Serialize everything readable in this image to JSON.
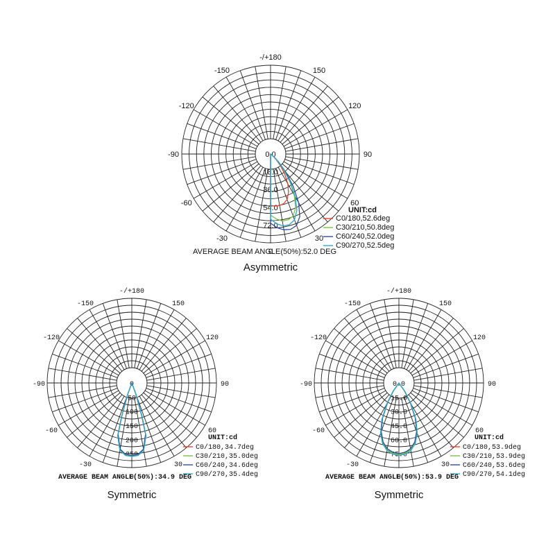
{
  "chart_data": [
    {
      "type": "polar",
      "title": "Asymmetric",
      "unit_label": "UNIT:cd",
      "footer": "AVERAGE BEAM ANGLE(50%):52.0 DEG",
      "angle_labels": [
        "-/+180",
        "150",
        "120",
        "90",
        "60",
        "30",
        "0",
        "-30",
        "-60",
        "-90",
        "-120",
        "-150"
      ],
      "radial_labels": [
        "0.0",
        "18.0",
        "36.0",
        "54.0",
        "72.0"
      ],
      "rmax": 90,
      "series": [
        {
          "name": "C0/180,52.6deg",
          "color": "#e8432c",
          "points": [
            [
              0,
              52
            ],
            [
              5,
              53
            ],
            [
              10,
              53
            ],
            [
              15,
              52
            ],
            [
              20,
              49
            ],
            [
              25,
              43
            ],
            [
              30,
              35
            ],
            [
              35,
              25
            ],
            [
              40,
              16
            ],
            [
              45,
              8
            ],
            [
              50,
              3
            ],
            [
              55,
              1
            ],
            [
              60,
              0
            ]
          ]
        },
        {
          "name": "C30/210,50.8deg",
          "color": "#7cc242",
          "points": [
            [
              0,
              62
            ],
            [
              5,
              66
            ],
            [
              10,
              69
            ],
            [
              15,
              69
            ],
            [
              20,
              67
            ],
            [
              25,
              60
            ],
            [
              30,
              48
            ],
            [
              35,
              34
            ],
            [
              40,
              20
            ],
            [
              45,
              10
            ],
            [
              50,
              4
            ],
            [
              55,
              1
            ],
            [
              60,
              0
            ]
          ]
        },
        {
          "name": "C60/240,52.0deg",
          "color": "#2d4f9e",
          "points": [
            [
              0,
              70
            ],
            [
              5,
              75
            ],
            [
              10,
              78
            ],
            [
              15,
              79
            ],
            [
              20,
              77
            ],
            [
              25,
              70
            ],
            [
              30,
              57
            ],
            [
              35,
              40
            ],
            [
              40,
              24
            ],
            [
              45,
              12
            ],
            [
              50,
              5
            ],
            [
              55,
              1
            ],
            [
              60,
              0
            ]
          ]
        },
        {
          "name": "C90/270,52.5deg",
          "color": "#2aa9c9",
          "points": [
            [
              0,
              66
            ],
            [
              5,
              71
            ],
            [
              10,
              74
            ],
            [
              15,
              74
            ],
            [
              20,
              71
            ],
            [
              25,
              63
            ],
            [
              30,
              50
            ],
            [
              35,
              35
            ],
            [
              40,
              21
            ],
            [
              45,
              10
            ],
            [
              50,
              4
            ],
            [
              55,
              1
            ],
            [
              60,
              0
            ]
          ]
        }
      ]
    },
    {
      "type": "polar",
      "title": "Symmetric",
      "unit_label": "UNIT:cd",
      "footer": "AVERAGE BEAM ANGLE(50%):34.9 DEG",
      "angle_labels": [
        "-/+180",
        "150",
        "120",
        "90",
        "60",
        "30",
        "0",
        "-30",
        "-60",
        "-90",
        "-120",
        "-150"
      ],
      "radial_labels": [
        "0",
        "50",
        "100",
        "150",
        "200",
        "250"
      ],
      "rmax": 300,
      "series": [
        {
          "name": "C0/180,34.7deg",
          "color": "#e8432c",
          "points": [
            [
              -25,
              0
            ],
            [
              -20,
              40
            ],
            [
              -17,
              120
            ],
            [
              -15,
              190
            ],
            [
              -10,
              240
            ],
            [
              -5,
              255
            ],
            [
              0,
              258
            ],
            [
              5,
              255
            ],
            [
              10,
              240
            ],
            [
              15,
              190
            ],
            [
              17,
              120
            ],
            [
              20,
              40
            ],
            [
              25,
              0
            ]
          ]
        },
        {
          "name": "C30/210,35.0deg",
          "color": "#7cc242",
          "points": [
            [
              -25,
              0
            ],
            [
              -20,
              42
            ],
            [
              -17,
              122
            ],
            [
              -15,
              192
            ],
            [
              -10,
              242
            ],
            [
              -5,
              257
            ],
            [
              0,
              260
            ],
            [
              5,
              257
            ],
            [
              10,
              242
            ],
            [
              15,
              192
            ],
            [
              17,
              122
            ],
            [
              20,
              42
            ],
            [
              25,
              0
            ]
          ]
        },
        {
          "name": "C60/240,34.6deg",
          "color": "#2d4f9e",
          "points": [
            [
              -25,
              0
            ],
            [
              -20,
              40
            ],
            [
              -17,
              118
            ],
            [
              -15,
              188
            ],
            [
              -10,
              238
            ],
            [
              -5,
              254
            ],
            [
              0,
              257
            ],
            [
              5,
              254
            ],
            [
              10,
              238
            ],
            [
              15,
              188
            ],
            [
              17,
              118
            ],
            [
              20,
              40
            ],
            [
              25,
              0
            ]
          ]
        },
        {
          "name": "C90/270,35.4deg",
          "color": "#2aa9c9",
          "points": [
            [
              -25,
              0
            ],
            [
              -20,
              44
            ],
            [
              -17,
              125
            ],
            [
              -15,
              194
            ],
            [
              -10,
              243
            ],
            [
              -5,
              258
            ],
            [
              0,
              261
            ],
            [
              5,
              258
            ],
            [
              10,
              243
            ],
            [
              15,
              194
            ],
            [
              17,
              125
            ],
            [
              20,
              44
            ],
            [
              25,
              0
            ]
          ]
        }
      ]
    },
    {
      "type": "polar",
      "title": "Symmetric",
      "unit_label": "UNIT:cd",
      "footer": "AVERAGE BEAM ANGLE(50%):53.9 DEG",
      "angle_labels": [
        "-/+180",
        "150",
        "120",
        "90",
        "60",
        "30",
        "0",
        "-30",
        "-60",
        "-90",
        "-120",
        "-150"
      ],
      "radial_labels": [
        "0.0",
        "15.0",
        "30.0",
        "45.0",
        "60.0",
        "75.0"
      ],
      "rmax": 90,
      "series": [
        {
          "name": "C0/180,53.9deg",
          "color": "#e8432c",
          "points": [
            [
              -40,
              0
            ],
            [
              -35,
              10
            ],
            [
              -30,
              25
            ],
            [
              -25,
              42
            ],
            [
              -20,
              56
            ],
            [
              -15,
              66
            ],
            [
              -10,
              72
            ],
            [
              -5,
              75
            ],
            [
              0,
              76
            ],
            [
              5,
              75
            ],
            [
              10,
              72
            ],
            [
              15,
              66
            ],
            [
              20,
              56
            ],
            [
              25,
              42
            ],
            [
              30,
              25
            ],
            [
              35,
              10
            ],
            [
              40,
              0
            ]
          ]
        },
        {
          "name": "C30/210,53.9deg",
          "color": "#7cc242",
          "points": [
            [
              -40,
              0
            ],
            [
              -35,
              10
            ],
            [
              -30,
              25
            ],
            [
              -25,
              42
            ],
            [
              -20,
              56
            ],
            [
              -15,
              66
            ],
            [
              -10,
              72
            ],
            [
              -5,
              75
            ],
            [
              0,
              76
            ],
            [
              5,
              75
            ],
            [
              10,
              72
            ],
            [
              15,
              66
            ],
            [
              20,
              56
            ],
            [
              25,
              42
            ],
            [
              30,
              25
            ],
            [
              35,
              10
            ],
            [
              40,
              0
            ]
          ]
        },
        {
          "name": "C60/240,53.6deg",
          "color": "#2d4f9e",
          "points": [
            [
              -40,
              0
            ],
            [
              -35,
              10
            ],
            [
              -30,
              24
            ],
            [
              -25,
              41
            ],
            [
              -20,
              55
            ],
            [
              -15,
              65
            ],
            [
              -10,
              71
            ],
            [
              -5,
              74
            ],
            [
              0,
              75
            ],
            [
              5,
              74
            ],
            [
              10,
              71
            ],
            [
              15,
              65
            ],
            [
              20,
              55
            ],
            [
              25,
              41
            ],
            [
              30,
              24
            ],
            [
              35,
              10
            ],
            [
              40,
              0
            ]
          ]
        },
        {
          "name": "C90/270,54.1deg",
          "color": "#2aa9c9",
          "points": [
            [
              -40,
              0
            ],
            [
              -35,
              11
            ],
            [
              -30,
              26
            ],
            [
              -25,
              43
            ],
            [
              -20,
              57
            ],
            [
              -15,
              67
            ],
            [
              -10,
              73
            ],
            [
              -5,
              76
            ],
            [
              0,
              77
            ],
            [
              5,
              76
            ],
            [
              10,
              73
            ],
            [
              15,
              67
            ],
            [
              20,
              57
            ],
            [
              25,
              43
            ],
            [
              30,
              26
            ],
            [
              35,
              11
            ],
            [
              40,
              0
            ]
          ]
        }
      ]
    }
  ]
}
